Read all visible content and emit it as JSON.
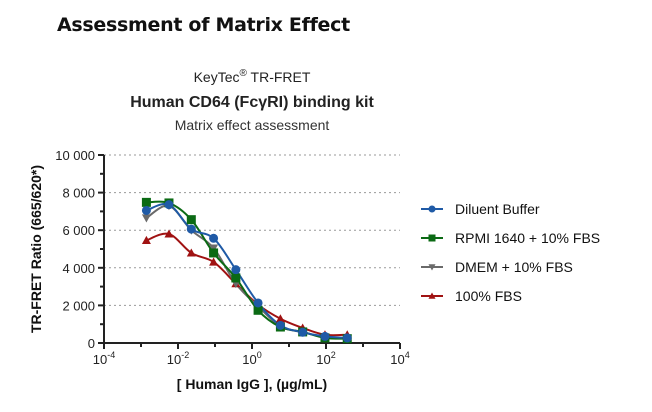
{
  "page": {
    "heading": "Assessment of Matrix Effect"
  },
  "chart_data": {
    "type": "line",
    "title_line1": "KeyTec",
    "title_sup": "®",
    "title_line1_rest": " TR-FRET",
    "title": "Human CD64 (FcγRI) binding kit",
    "subtitle": "Matrix effect assessment",
    "xlabel": "[ Human IgG ],  (µg/mL)",
    "ylabel": "TR-FRET Ratio (665/620*)",
    "xscale": "log",
    "xlim": [
      0.0001,
      10000
    ],
    "ylim": [
      0,
      10000
    ],
    "x_ticks": [
      {
        "base": "10",
        "exp": "-4",
        "v": 0.0001
      },
      {
        "base": "10",
        "exp": "-2",
        "v": 0.01
      },
      {
        "base": "10",
        "exp": "0",
        "v": 1
      },
      {
        "base": "10",
        "exp": "2",
        "v": 100
      },
      {
        "base": "10",
        "exp": "4",
        "v": 10000
      }
    ],
    "y_ticks": [
      {
        "label": "0",
        "v": 0
      },
      {
        "label": "2 000",
        "v": 2000
      },
      {
        "label": "4 000",
        "v": 4000
      },
      {
        "label": "6 000",
        "v": 6000
      },
      {
        "label": "8 000",
        "v": 8000
      },
      {
        "label": "10 000",
        "v": 10000
      }
    ],
    "grid": "horizontal dotted",
    "legend_position": "right",
    "x": [
      0.0014,
      0.0057,
      0.0229,
      0.0916,
      0.366,
      1.46,
      5.86,
      23.4,
      93.75,
      375
    ],
    "series": [
      {
        "name": "Diluent Buffer",
        "color": "#1f5aa6",
        "marker": "circle",
        "values": [
          7050,
          7360,
          6060,
          5570,
          3900,
          2130,
          940,
          570,
          350,
          270
        ]
      },
      {
        "name": "RPMI 1640 + 10% FBS",
        "color": "#0b6a14",
        "marker": "square",
        "values": [
          7480,
          7450,
          6560,
          4790,
          3460,
          1740,
          850,
          590,
          270,
          230
        ]
      },
      {
        "name": "DMEM + 10% FBS",
        "color": "#6a6a6a",
        "marker": "triangle-down",
        "values": [
          6650,
          7300,
          6000,
          5050,
          3160,
          1950,
          890,
          570,
          320,
          250
        ]
      },
      {
        "name": "100% FBS",
        "color": "#a01212",
        "marker": "triangle-up",
        "values": [
          5460,
          5800,
          4790,
          4310,
          3160,
          2040,
          1290,
          800,
          440,
          440
        ]
      }
    ]
  }
}
